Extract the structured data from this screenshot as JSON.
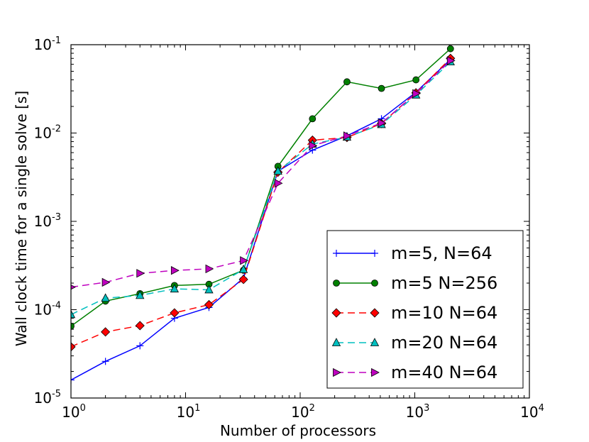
{
  "chart_data": {
    "type": "line",
    "xscale": "log",
    "yscale": "log",
    "xlim": [
      1,
      10000
    ],
    "ylim": [
      1e-05,
      0.1
    ],
    "xlabel": "Number of processors",
    "ylabel": "Wall clock time for a single solve [s]",
    "x_ticks": [
      {
        "value": 1,
        "base": "10",
        "exp": "0"
      },
      {
        "value": 10,
        "base": "10",
        "exp": "1"
      },
      {
        "value": 100,
        "base": "10",
        "exp": "2"
      },
      {
        "value": 1000,
        "base": "10",
        "exp": "3"
      },
      {
        "value": 10000,
        "base": "10",
        "exp": "4"
      }
    ],
    "y_ticks": [
      {
        "value": 1e-05,
        "base": "10",
        "exp": "-5"
      },
      {
        "value": 0.0001,
        "base": "10",
        "exp": "-4"
      },
      {
        "value": 0.001,
        "base": "10",
        "exp": "-3"
      },
      {
        "value": 0.01,
        "base": "10",
        "exp": "-2"
      },
      {
        "value": 0.1,
        "base": "10",
        "exp": "-1"
      }
    ],
    "legend_position": "lower-right",
    "series": [
      {
        "name": "m=5, N=64",
        "color": "#0000ff",
        "linestyle": "solid",
        "marker": "plus",
        "x": [
          1,
          2,
          4,
          8,
          16,
          32,
          64,
          128,
          256,
          512,
          1024,
          2048
        ],
        "y": [
          1.6e-05,
          2.6e-05,
          3.9e-05,
          8e-05,
          0.000106,
          0.000228,
          0.0037,
          0.0064,
          0.0093,
          0.0145,
          0.029,
          0.068
        ]
      },
      {
        "name": "m=5 N=256",
        "color": "#008000",
        "linestyle": "solid",
        "marker": "circle",
        "x": [
          1,
          2,
          4,
          8,
          16,
          32,
          64,
          128,
          256,
          512,
          1024,
          2048
        ],
        "y": [
          6.5e-05,
          0.000125,
          0.000152,
          0.000188,
          0.000194,
          0.00028,
          0.0042,
          0.0145,
          0.038,
          0.032,
          0.04,
          0.09
        ]
      },
      {
        "name": "m=10 N=64",
        "color": "#ff0000",
        "linestyle": "dashed",
        "marker": "diamond",
        "x": [
          1,
          2,
          4,
          8,
          16,
          32,
          64,
          128,
          256,
          512,
          1024,
          2048
        ],
        "y": [
          3.8e-05,
          5.6e-05,
          6.6e-05,
          9.2e-05,
          0.000114,
          0.00022,
          0.0036,
          0.0083,
          0.0089,
          0.0128,
          0.0285,
          0.07
        ]
      },
      {
        "name": "m=20 N=64",
        "color": "#00bfbf",
        "linestyle": "dashed",
        "marker": "triangle-up",
        "x": [
          1,
          2,
          4,
          8,
          16,
          32,
          64,
          128,
          256,
          512,
          1024,
          2048
        ],
        "y": [
          8.8e-05,
          0.000135,
          0.000145,
          0.000172,
          0.000168,
          0.000285,
          0.0037,
          0.0075,
          0.009,
          0.0125,
          0.027,
          0.064
        ]
      },
      {
        "name": "m=40 N=64",
        "color": "#bf00bf",
        "linestyle": "dashed",
        "marker": "triangle-right",
        "x": [
          1,
          2,
          4,
          8,
          16,
          32,
          64,
          128,
          256,
          512,
          1024,
          2048
        ],
        "y": [
          0.00018,
          0.000204,
          0.000258,
          0.000278,
          0.00029,
          0.00036,
          0.0027,
          0.0072,
          0.0093,
          0.013,
          0.028,
          0.066
        ]
      }
    ]
  }
}
